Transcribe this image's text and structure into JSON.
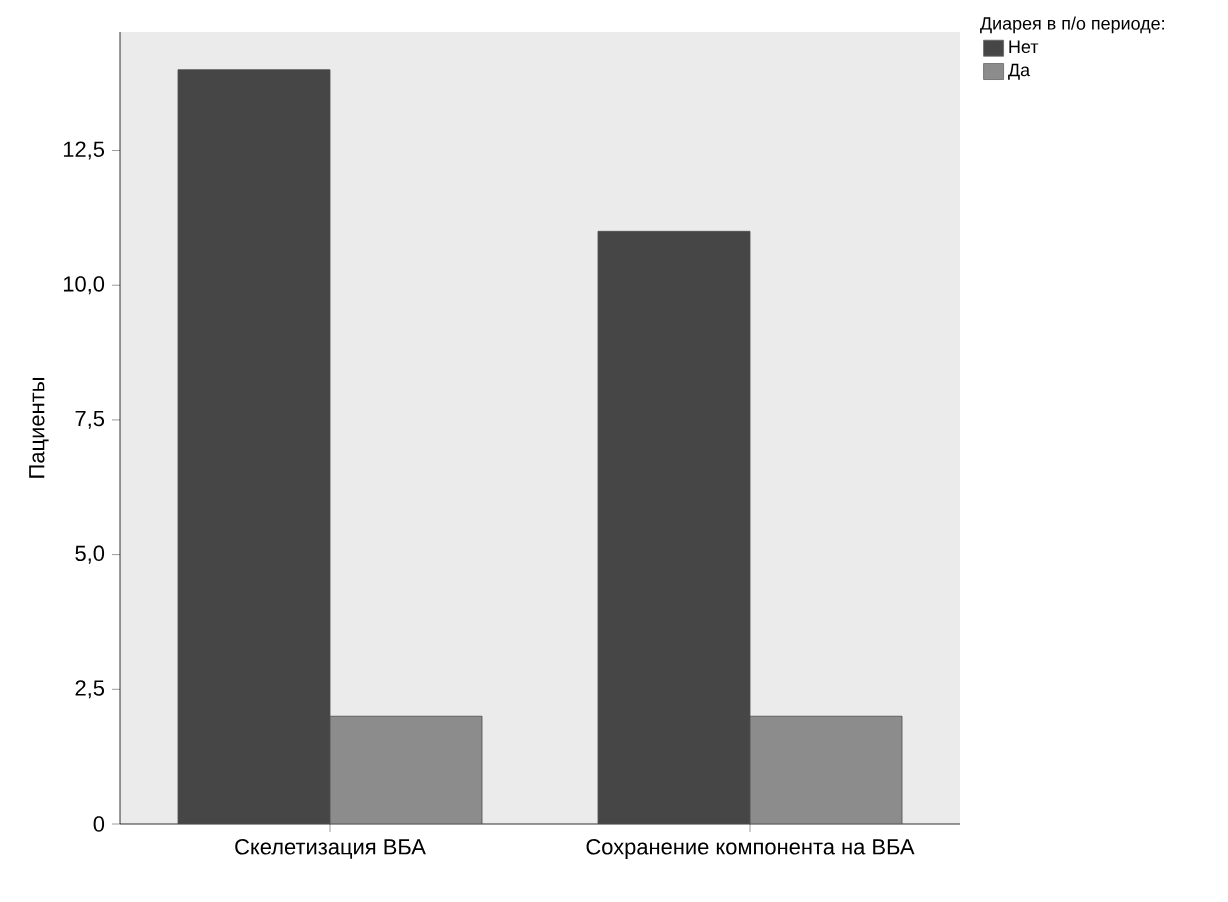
{
  "chart_data": {
    "type": "bar",
    "categories": [
      "Скелетизация ВБА",
      "Сохранение компонента на ВБА"
    ],
    "series": [
      {
        "name": "Нет",
        "color": "#464646",
        "values": [
          14,
          11
        ]
      },
      {
        "name": "Да",
        "color": "#8c8c8c",
        "values": [
          2,
          2
        ]
      }
    ],
    "ylabel": "Пациенты",
    "legend_title": "Диарея в п/о периоде:",
    "ylim": [
      0,
      14.7
    ],
    "yticks": [
      0,
      {
        "value": 2.5,
        "label": "2,5"
      },
      {
        "value": 5,
        "label": "5,0"
      },
      {
        "value": 7.5,
        "label": "7,5"
      },
      {
        "value": 10,
        "label": "10,0"
      },
      {
        "value": 12.5,
        "label": "12,5"
      }
    ],
    "grid": false,
    "legend": "top right"
  }
}
